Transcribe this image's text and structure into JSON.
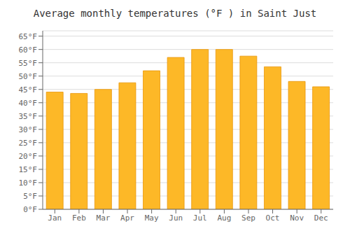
{
  "chart_data": {
    "type": "bar",
    "title": "Average monthly temperatures (°F ) in Saint Just",
    "categories": [
      "Jan",
      "Feb",
      "Mar",
      "Apr",
      "May",
      "Jun",
      "Jul",
      "Aug",
      "Sep",
      "Oct",
      "Nov",
      "Dec"
    ],
    "values": [
      44.0,
      43.5,
      45.0,
      47.5,
      52.0,
      57.0,
      60.0,
      60.0,
      57.5,
      53.5,
      48.0,
      46.0
    ],
    "color": "#FDB827",
    "ylim": [
      0,
      67
    ],
    "yticks": [
      {
        "value": 0,
        "label": "0°F"
      },
      {
        "value": 5,
        "label": "5°F"
      },
      {
        "value": 10,
        "label": "10°F"
      },
      {
        "value": 15,
        "label": "15°F"
      },
      {
        "value": 20,
        "label": "20°F"
      },
      {
        "value": 25,
        "label": "25°F"
      },
      {
        "value": 30,
        "label": "30°F"
      },
      {
        "value": 35,
        "label": "35°F"
      },
      {
        "value": 40,
        "label": "40°F"
      },
      {
        "value": 45,
        "label": "45°F"
      },
      {
        "value": 50,
        "label": "50°F"
      },
      {
        "value": 55,
        "label": "55°F"
      },
      {
        "value": 60,
        "label": "60°F"
      },
      {
        "value": 65,
        "label": "65°F"
      }
    ],
    "grid": true
  }
}
